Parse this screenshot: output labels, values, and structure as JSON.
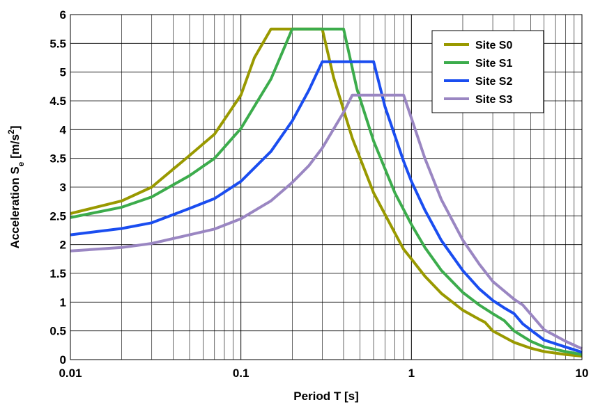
{
  "chart_data": {
    "type": "line",
    "xscale": "log",
    "xlim": [
      0.01,
      10
    ],
    "ylim": [
      0,
      6
    ],
    "grid": true,
    "legend_position": "top-right",
    "xlabel": "Period T [s]",
    "ylabel": {
      "pre": "Acceleration S",
      "sub": "e",
      "mid": " [m/s",
      "sup": "2",
      "post": "]"
    },
    "xticks": [
      {
        "value": 0.01,
        "label": "0.01"
      },
      {
        "value": 0.1,
        "label": "0.1"
      },
      {
        "value": 1,
        "label": "1"
      },
      {
        "value": 10,
        "label": "10"
      }
    ],
    "yticks": [
      {
        "value": 0,
        "label": "0"
      },
      {
        "value": 0.5,
        "label": "0.5"
      },
      {
        "value": 1,
        "label": "1"
      },
      {
        "value": 1.5,
        "label": "1.5"
      },
      {
        "value": 2,
        "label": "2"
      },
      {
        "value": 2.5,
        "label": "2.5"
      },
      {
        "value": 3,
        "label": "3"
      },
      {
        "value": 3.5,
        "label": "3.5"
      },
      {
        "value": 4,
        "label": "4"
      },
      {
        "value": 4.5,
        "label": "4.5"
      },
      {
        "value": 5,
        "label": "5"
      },
      {
        "value": 5.5,
        "label": "5.5"
      },
      {
        "value": 6,
        "label": "6"
      }
    ],
    "series": [
      {
        "name": "Site S0",
        "color": "#999900",
        "points": [
          [
            0.01,
            2.54
          ],
          [
            0.02,
            2.76
          ],
          [
            0.03,
            3.0
          ],
          [
            0.05,
            3.55
          ],
          [
            0.07,
            3.92
          ],
          [
            0.1,
            4.6
          ],
          [
            0.12,
            5.25
          ],
          [
            0.15,
            5.75
          ],
          [
            0.2,
            5.75
          ],
          [
            0.3,
            5.75
          ],
          [
            0.35,
            4.9
          ],
          [
            0.45,
            3.85
          ],
          [
            0.6,
            2.9
          ],
          [
            0.8,
            2.2
          ],
          [
            0.9,
            1.92
          ],
          [
            1.0,
            1.75
          ],
          [
            1.2,
            1.45
          ],
          [
            1.5,
            1.15
          ],
          [
            2.0,
            0.86
          ],
          [
            2.5,
            0.7
          ],
          [
            2.7,
            0.65
          ],
          [
            3.0,
            0.5
          ],
          [
            4.0,
            0.3
          ],
          [
            5.0,
            0.2
          ],
          [
            6.0,
            0.14
          ],
          [
            8.0,
            0.09
          ],
          [
            10,
            0.06
          ]
        ]
      },
      {
        "name": "Site S1",
        "color": "#3cac4c",
        "points": [
          [
            0.01,
            2.47
          ],
          [
            0.02,
            2.65
          ],
          [
            0.03,
            2.83
          ],
          [
            0.05,
            3.2
          ],
          [
            0.07,
            3.5
          ],
          [
            0.1,
            4.02
          ],
          [
            0.15,
            4.88
          ],
          [
            0.2,
            5.75
          ],
          [
            0.4,
            5.75
          ],
          [
            0.48,
            4.7
          ],
          [
            0.6,
            3.8
          ],
          [
            0.8,
            2.9
          ],
          [
            1.0,
            2.35
          ],
          [
            1.2,
            1.95
          ],
          [
            1.5,
            1.55
          ],
          [
            2.0,
            1.17
          ],
          [
            2.5,
            0.95
          ],
          [
            3.0,
            0.8
          ],
          [
            3.5,
            0.68
          ],
          [
            4.0,
            0.5
          ],
          [
            5.0,
            0.32
          ],
          [
            6.0,
            0.22
          ],
          [
            8.0,
            0.14
          ],
          [
            10,
            0.09
          ]
        ]
      },
      {
        "name": "Site S2",
        "color": "#1a4df0",
        "points": [
          [
            0.01,
            2.17
          ],
          [
            0.02,
            2.28
          ],
          [
            0.03,
            2.38
          ],
          [
            0.05,
            2.63
          ],
          [
            0.07,
            2.8
          ],
          [
            0.1,
            3.1
          ],
          [
            0.15,
            3.62
          ],
          [
            0.2,
            4.15
          ],
          [
            0.25,
            4.68
          ],
          [
            0.3,
            5.18
          ],
          [
            0.6,
            5.18
          ],
          [
            0.7,
            4.4
          ],
          [
            0.9,
            3.45
          ],
          [
            1.0,
            3.1
          ],
          [
            1.2,
            2.6
          ],
          [
            1.5,
            2.07
          ],
          [
            2.0,
            1.55
          ],
          [
            2.5,
            1.23
          ],
          [
            3.0,
            1.03
          ],
          [
            3.5,
            0.9
          ],
          [
            4.0,
            0.8
          ],
          [
            4.5,
            0.62
          ],
          [
            6.0,
            0.34
          ],
          [
            8.0,
            0.22
          ],
          [
            10,
            0.13
          ]
        ]
      },
      {
        "name": "Site S3",
        "color": "#9a86c2",
        "points": [
          [
            0.01,
            1.89
          ],
          [
            0.02,
            1.95
          ],
          [
            0.03,
            2.02
          ],
          [
            0.05,
            2.17
          ],
          [
            0.07,
            2.27
          ],
          [
            0.1,
            2.45
          ],
          [
            0.15,
            2.76
          ],
          [
            0.2,
            3.08
          ],
          [
            0.25,
            3.37
          ],
          [
            0.3,
            3.68
          ],
          [
            0.4,
            4.3
          ],
          [
            0.45,
            4.6
          ],
          [
            0.9,
            4.6
          ],
          [
            1.0,
            4.2
          ],
          [
            1.2,
            3.5
          ],
          [
            1.5,
            2.78
          ],
          [
            2.0,
            2.08
          ],
          [
            2.5,
            1.66
          ],
          [
            3.0,
            1.36
          ],
          [
            4.0,
            1.05
          ],
          [
            4.5,
            0.95
          ],
          [
            6.0,
            0.52
          ],
          [
            8.0,
            0.32
          ],
          [
            10,
            0.19
          ]
        ]
      }
    ]
  }
}
